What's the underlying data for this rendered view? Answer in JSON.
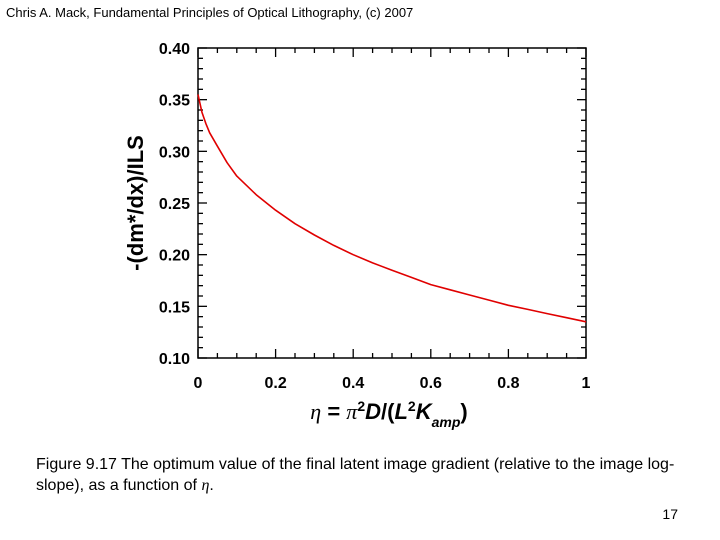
{
  "header": {
    "text": "Chris A. Mack, Fundamental Principles of Optical Lithography, (c) 2007"
  },
  "chart_data": {
    "type": "line",
    "title": "",
    "xlabel": "η = π²D/(L²K_amp)",
    "ylabel": "-(dm*/dx)/ILS",
    "xlim": [
      0,
      1
    ],
    "ylim": [
      0.1,
      0.4
    ],
    "x_ticks": [
      "0",
      "0.2",
      "0.4",
      "0.6",
      "0.8",
      "1"
    ],
    "y_ticks": [
      "0.10",
      "0.15",
      "0.20",
      "0.25",
      "0.30",
      "0.35",
      "0.40"
    ],
    "grid": false,
    "legend": "none",
    "series": [
      {
        "color": "#e00000",
        "x": [
          0,
          0.01,
          0.02,
          0.03,
          0.05,
          0.075,
          0.1,
          0.15,
          0.2,
          0.25,
          0.3,
          0.35,
          0.4,
          0.45,
          0.5,
          0.55,
          0.6,
          0.65,
          0.7,
          0.75,
          0.8,
          0.85,
          0.9,
          0.95,
          1.0
        ],
        "y": [
          0.355,
          0.338,
          0.327,
          0.318,
          0.305,
          0.289,
          0.276,
          0.258,
          0.243,
          0.23,
          0.219,
          0.209,
          0.2,
          0.192,
          0.185,
          0.178,
          0.171,
          0.166,
          0.161,
          0.156,
          0.151,
          0.147,
          0.143,
          0.139,
          0.135
        ]
      }
    ]
  },
  "caption": {
    "prefix": "Figure 9.17  The optimum value of the final latent image gradient (relative to the image log-slope), as a function of ",
    "symbol": "η",
    "suffix": "."
  },
  "page_number": "17"
}
